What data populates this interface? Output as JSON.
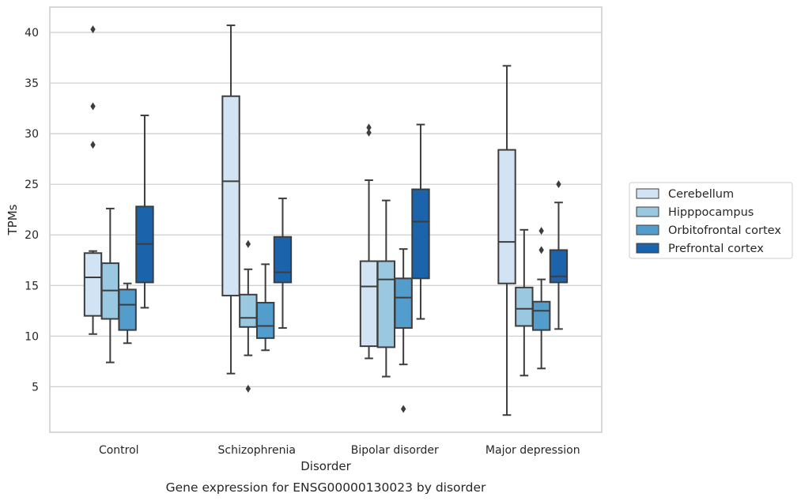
{
  "caption": "Gene expression for ENSG00000130023 by disorder",
  "chart_data": {
    "type": "boxplot",
    "xlabel": "Disorder",
    "ylabel": "TPMs",
    "ylim": [
      0.5,
      42.5
    ],
    "yticks": [
      5,
      10,
      15,
      20,
      25,
      30,
      35,
      40
    ],
    "grid": "horizontal",
    "legend_position": "right",
    "categories": [
      "Control",
      "Schizophrenia",
      "Bipolar disorder",
      "Major depression"
    ],
    "series": [
      {
        "name": "Cerebellum",
        "color": "#d2e3f3",
        "boxes": [
          {
            "whislo": 10.2,
            "q1": 12.0,
            "med": 15.8,
            "q3": 18.2,
            "whishi": 18.4,
            "fliers": [
              28.9,
              32.7,
              40.3
            ]
          },
          {
            "whislo": 6.3,
            "q1": 14.0,
            "med": 25.3,
            "q3": 33.7,
            "whishi": 40.7,
            "fliers": []
          },
          {
            "whislo": 7.8,
            "q1": 9.0,
            "med": 14.9,
            "q3": 17.4,
            "whishi": 25.4,
            "fliers": [
              30.1,
              30.6
            ]
          },
          {
            "whislo": 2.2,
            "q1": 15.2,
            "med": 19.3,
            "q3": 28.4,
            "whishi": 36.7,
            "fliers": []
          }
        ]
      },
      {
        "name": "Hipppocampus",
        "color": "#9ac8e0",
        "boxes": [
          {
            "whislo": 7.4,
            "q1": 11.7,
            "med": 14.5,
            "q3": 17.2,
            "whishi": 22.6,
            "fliers": []
          },
          {
            "whislo": 8.1,
            "q1": 10.9,
            "med": 11.8,
            "q3": 14.1,
            "whishi": 16.6,
            "fliers": [
              4.8,
              19.1
            ]
          },
          {
            "whislo": 6.0,
            "q1": 8.9,
            "med": 15.6,
            "q3": 17.4,
            "whishi": 23.4,
            "fliers": []
          },
          {
            "whislo": 6.1,
            "q1": 11.0,
            "med": 12.7,
            "q3": 14.8,
            "whishi": 20.5,
            "fliers": []
          }
        ]
      },
      {
        "name": "Orbitofrontal cortex",
        "color": "#529dcc",
        "boxes": [
          {
            "whislo": 9.3,
            "q1": 10.6,
            "med": 13.1,
            "q3": 14.6,
            "whishi": 15.2,
            "fliers": []
          },
          {
            "whislo": 8.6,
            "q1": 9.8,
            "med": 11.0,
            "q3": 13.3,
            "whishi": 17.1,
            "fliers": []
          },
          {
            "whislo": 7.2,
            "q1": 10.8,
            "med": 13.8,
            "q3": 15.7,
            "whishi": 18.6,
            "fliers": [
              2.8
            ]
          },
          {
            "whislo": 6.8,
            "q1": 10.6,
            "med": 12.5,
            "q3": 13.4,
            "whishi": 15.6,
            "fliers": [
              18.5,
              20.4
            ]
          }
        ]
      },
      {
        "name": "Prefrontal cortex",
        "color": "#1b64ab",
        "boxes": [
          {
            "whislo": 12.8,
            "q1": 15.3,
            "med": 19.1,
            "q3": 22.8,
            "whishi": 31.8,
            "fliers": []
          },
          {
            "whislo": 10.8,
            "q1": 15.3,
            "med": 16.3,
            "q3": 19.8,
            "whishi": 23.6,
            "fliers": []
          },
          {
            "whislo": 11.7,
            "q1": 15.7,
            "med": 21.3,
            "q3": 24.5,
            "whishi": 30.9,
            "fliers": []
          },
          {
            "whislo": 10.7,
            "q1": 15.3,
            "med": 15.9,
            "q3": 18.5,
            "whishi": 23.2,
            "fliers": [
              25.0
            ]
          }
        ]
      }
    ]
  }
}
